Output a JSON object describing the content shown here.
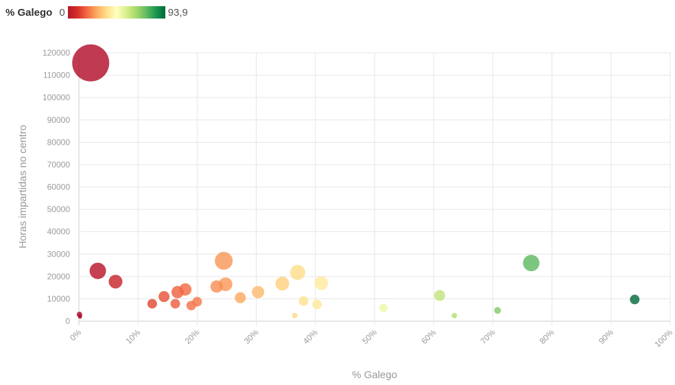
{
  "legend": {
    "title": "% Galego",
    "min_label": "0",
    "max_label": "93,9",
    "min_value": 0,
    "max_value": 93.9
  },
  "chart_data": {
    "type": "scatter",
    "title": "",
    "xlabel": "% Galego",
    "ylabel": "Horas impartidas no centro",
    "xlim": [
      0,
      100
    ],
    "ylim": [
      0,
      120000
    ],
    "grid": true,
    "x_ticks": [
      0,
      10,
      20,
      30,
      40,
      50,
      60,
      70,
      80,
      90,
      100
    ],
    "x_tick_labels": [
      "0%",
      "10%",
      "20%",
      "30%",
      "40%",
      "50%",
      "60%",
      "70%",
      "80%",
      "90%",
      "100%"
    ],
    "y_ticks": [
      0,
      10000,
      20000,
      30000,
      40000,
      50000,
      60000,
      70000,
      80000,
      90000,
      100000,
      110000,
      120000
    ],
    "y_tick_labels": [
      "0",
      "10000",
      "20000",
      "30000",
      "40000",
      "50000",
      "60000",
      "70000",
      "80000",
      "90000",
      "100000",
      "110000",
      "120000"
    ],
    "points": [
      {
        "x": 2,
        "y": 115500,
        "r": 27
      },
      {
        "x": 3.2,
        "y": 22500,
        "r": 12
      },
      {
        "x": 6.2,
        "y": 17700,
        "r": 10
      },
      {
        "x": 0.1,
        "y": 3000,
        "r": 4
      },
      {
        "x": 0.2,
        "y": 2000,
        "r": 3
      },
      {
        "x": 12.4,
        "y": 7800,
        "r": 7
      },
      {
        "x": 14.4,
        "y": 11000,
        "r": 8
      },
      {
        "x": 16.3,
        "y": 7800,
        "r": 7
      },
      {
        "x": 16.7,
        "y": 13000,
        "r": 9
      },
      {
        "x": 18,
        "y": 14200,
        "r": 9
      },
      {
        "x": 19,
        "y": 7000,
        "r": 7
      },
      {
        "x": 20,
        "y": 8700,
        "r": 7
      },
      {
        "x": 23.3,
        "y": 15500,
        "r": 9
      },
      {
        "x": 24.5,
        "y": 27000,
        "r": 13
      },
      {
        "x": 24.8,
        "y": 16500,
        "r": 10
      },
      {
        "x": 27.3,
        "y": 10500,
        "r": 8
      },
      {
        "x": 30.3,
        "y": 13000,
        "r": 9
      },
      {
        "x": 34.4,
        "y": 16800,
        "r": 10
      },
      {
        "x": 36.5,
        "y": 2500,
        "r": 4
      },
      {
        "x": 37,
        "y": 21800,
        "r": 11
      },
      {
        "x": 38,
        "y": 9000,
        "r": 7
      },
      {
        "x": 40.3,
        "y": 7500,
        "r": 7
      },
      {
        "x": 41,
        "y": 17000,
        "r": 10
      },
      {
        "x": 51.5,
        "y": 6000,
        "r": 6
      },
      {
        "x": 61,
        "y": 11500,
        "r": 8
      },
      {
        "x": 63.5,
        "y": 2500,
        "r": 4
      },
      {
        "x": 70.8,
        "y": 4800,
        "r": 5
      },
      {
        "x": 76.5,
        "y": 26000,
        "r": 12
      },
      {
        "x": 94,
        "y": 9700,
        "r": 7
      }
    ]
  }
}
